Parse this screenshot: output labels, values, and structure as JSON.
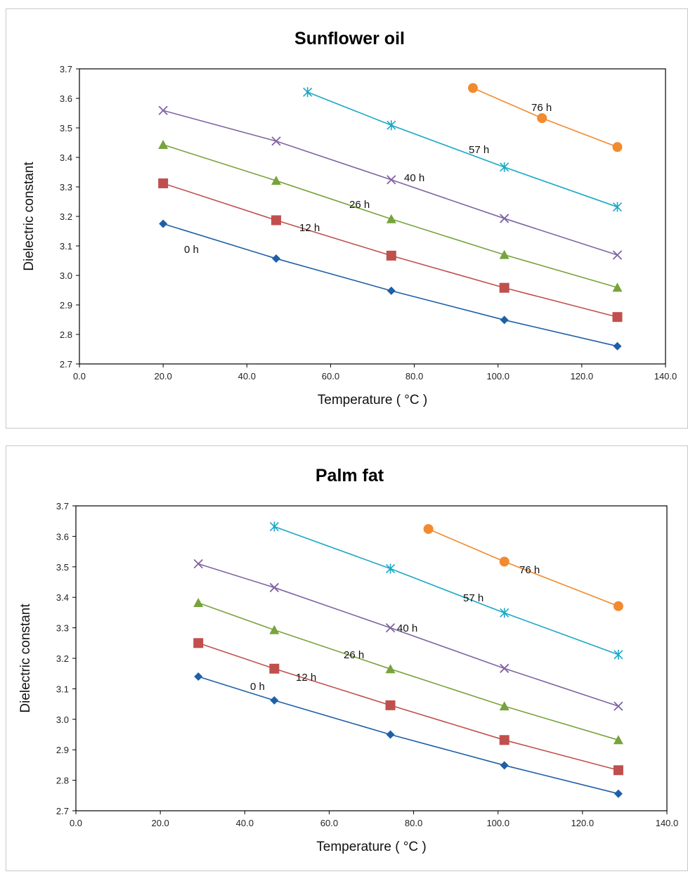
{
  "chart_data": [
    {
      "type": "line",
      "title": "Sunflower oil",
      "xlabel": "Temperature ( °C )",
      "ylabel": "Dielectric constant",
      "xlim": [
        0,
        140
      ],
      "ylim": [
        2.7,
        3.7
      ],
      "x_ticks": [
        "0.0",
        "20.0",
        "40.0",
        "60.0",
        "80.0",
        "100.0",
        "120.0",
        "140.0"
      ],
      "y_ticks": [
        "2.7",
        "2.8",
        "2.9",
        "3.0",
        "3.1",
        "3.2",
        "3.3",
        "3.4",
        "3.5",
        "3.6",
        "3.7"
      ],
      "grid": false,
      "legend": "none",
      "series": [
        {
          "name": "0 h",
          "color": "#1f5fa6",
          "marker": "diamond",
          "x": [
            20,
            47,
            74.5,
            101.5,
            128.5
          ],
          "y": [
            3.175,
            3.057,
            2.948,
            2.849,
            2.76
          ]
        },
        {
          "name": "12 h",
          "color": "#c0504d",
          "marker": "square",
          "x": [
            20,
            47,
            74.5,
            101.5,
            128.5
          ],
          "y": [
            3.312,
            3.187,
            3.067,
            2.958,
            2.859
          ]
        },
        {
          "name": "26 h",
          "color": "#77a33c",
          "marker": "triangle",
          "x": [
            20,
            47,
            74.5,
            101.5,
            128.5
          ],
          "y": [
            3.443,
            3.321,
            3.191,
            3.07,
            2.959
          ]
        },
        {
          "name": "40 h",
          "color": "#8064a2",
          "marker": "x",
          "x": [
            20,
            47,
            74.5,
            101.5,
            128.5
          ],
          "y": [
            3.559,
            3.455,
            3.324,
            3.193,
            3.069
          ]
        },
        {
          "name": "57 h",
          "color": "#1aa7c5",
          "marker": "star",
          "x": [
            54.5,
            74.5,
            101.5,
            128.5
          ],
          "y": [
            3.621,
            3.509,
            3.367,
            3.232
          ]
        },
        {
          "name": "76 h",
          "color": "#f28a2e",
          "marker": "circle",
          "x": [
            94,
            110.5,
            128.5
          ],
          "y": [
            3.635,
            3.533,
            3.435
          ]
        }
      ]
    },
    {
      "type": "line",
      "title": "Palm fat",
      "xlabel": "Temperature ( °C )",
      "ylabel": "Dielectric constant",
      "xlim": [
        0,
        140
      ],
      "ylim": [
        2.7,
        3.7
      ],
      "x_ticks": [
        "0.0",
        "20.0",
        "40.0",
        "60.0",
        "80.0",
        "100.0",
        "120.0",
        "140.0"
      ],
      "y_ticks": [
        "2.7",
        "2.8",
        "2.9",
        "3.0",
        "3.1",
        "3.2",
        "3.3",
        "3.4",
        "3.5",
        "3.6",
        "3.7"
      ],
      "grid": false,
      "legend": "none",
      "series": [
        {
          "name": "0 h",
          "color": "#1f5fa6",
          "marker": "diamond",
          "x": [
            29,
            47,
            74.5,
            101.5,
            128.5
          ],
          "y": [
            3.14,
            3.062,
            2.95,
            2.849,
            2.756
          ]
        },
        {
          "name": "12 h",
          "color": "#c0504d",
          "marker": "square",
          "x": [
            29,
            47,
            74.5,
            101.5,
            128.5
          ],
          "y": [
            3.25,
            3.166,
            3.046,
            2.932,
            2.833
          ]
        },
        {
          "name": "26 h",
          "color": "#77a33c",
          "marker": "triangle",
          "x": [
            29,
            47,
            74.5,
            101.5,
            128.5
          ],
          "y": [
            3.382,
            3.293,
            3.165,
            3.043,
            2.932
          ]
        },
        {
          "name": "40 h",
          "color": "#8064a2",
          "marker": "x",
          "x": [
            29,
            47,
            74.5,
            101.5,
            128.5
          ],
          "y": [
            3.51,
            3.432,
            3.3,
            3.167,
            3.043
          ]
        },
        {
          "name": "57 h",
          "color": "#1aa7c5",
          "marker": "star",
          "x": [
            47,
            74.5,
            101.5,
            128.5
          ],
          "y": [
            3.632,
            3.494,
            3.349,
            3.212
          ]
        },
        {
          "name": "76 h",
          "color": "#f28a2e",
          "marker": "circle",
          "x": [
            83.5,
            101.5,
            128.5
          ],
          "y": [
            3.624,
            3.517,
            3.371
          ]
        }
      ]
    }
  ]
}
